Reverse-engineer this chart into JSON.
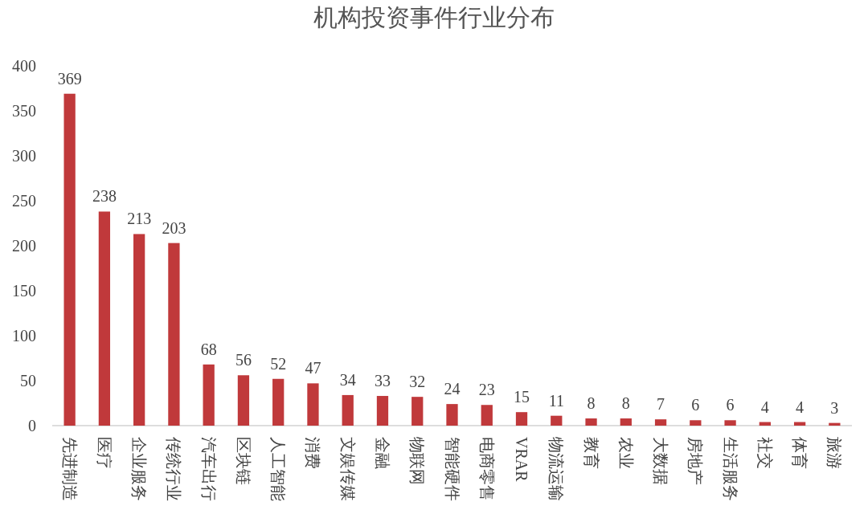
{
  "chart_data": {
    "type": "bar",
    "title": "机构投资事件行业分布",
    "categories": [
      "先进制造",
      "医疗",
      "企业服务",
      "传统行业",
      "汽车出行",
      "区块链",
      "人工智能",
      "消费",
      "文娱传媒",
      "金融",
      "物联网",
      "智能硬件",
      "电商零售",
      "VRAR",
      "物流运输",
      "教育",
      "农业",
      "大数据",
      "房地产",
      "生活服务",
      "社交",
      "体育",
      "旅游"
    ],
    "values": [
      369,
      238,
      213,
      203,
      68,
      56,
      52,
      47,
      34,
      33,
      32,
      24,
      23,
      15,
      11,
      8,
      8,
      7,
      6,
      6,
      4,
      4,
      3
    ],
    "color": "#c0393b",
    "ylim": [
      0,
      400
    ],
    "yticks": [
      0,
      50,
      100,
      150,
      200,
      250,
      300,
      350,
      400
    ],
    "data_labels": true
  }
}
